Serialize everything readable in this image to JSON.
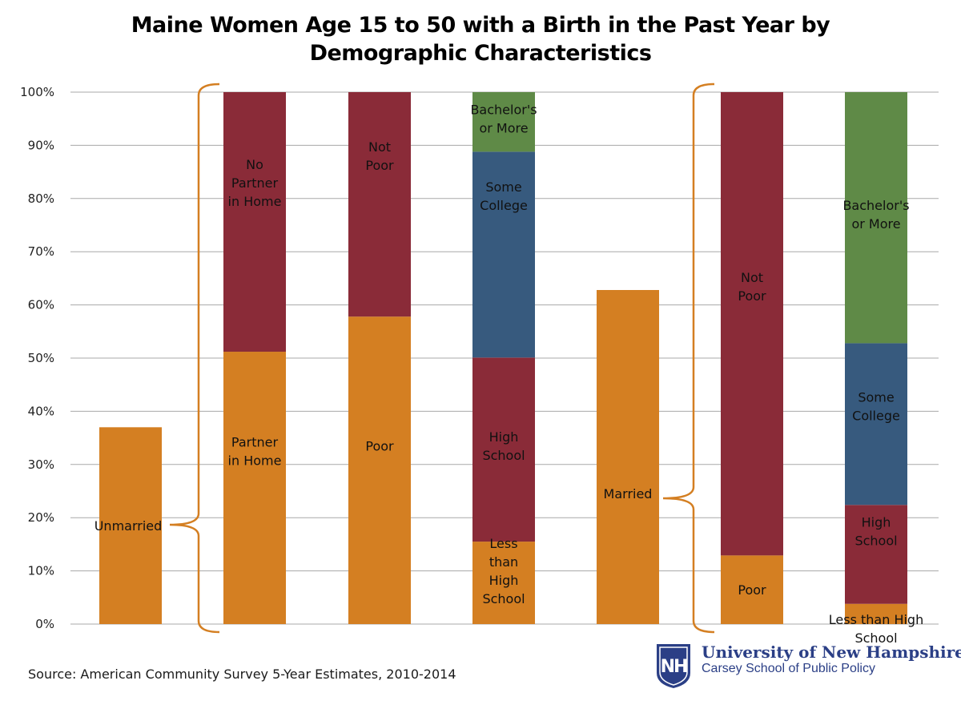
{
  "chart_data": {
    "type": "bar",
    "title_line1": "Maine Women Age 15 to 50 with a Birth in the Past Year by",
    "title_line2": "Demographic Characteristics",
    "ylim": [
      0,
      100
    ],
    "y_ticks": [
      "0%",
      "10%",
      "20%",
      "30%",
      "40%",
      "50%",
      "60%",
      "70%",
      "80%",
      "90%",
      "100%"
    ],
    "grid": true,
    "bars": [
      {
        "segments": [
          {
            "label": "Unmarried",
            "value": 37,
            "color": "#d47f22"
          }
        ]
      },
      {
        "segments": [
          {
            "label": "Partner in Home",
            "value": 51.2,
            "color": "#d47f22"
          },
          {
            "label": "No Partner in Home",
            "value": 48.8,
            "color": "#8a2b38"
          }
        ]
      },
      {
        "segments": [
          {
            "label": "Poor",
            "value": 57.8,
            "color": "#d47f22"
          },
          {
            "label": "Not Poor",
            "value": 42.2,
            "color": "#8a2b38"
          }
        ]
      },
      {
        "segments": [
          {
            "label": "Less than High School",
            "value": 15.5,
            "color": "#d47f22"
          },
          {
            "label": "High School",
            "value": 34.6,
            "color": "#8a2b38"
          },
          {
            "label": "Some College",
            "value": 38.7,
            "color": "#375a7e"
          },
          {
            "label": "Bachelor's or More",
            "value": 11.2,
            "color": "#5f8a47"
          }
        ]
      },
      {
        "segments": [
          {
            "label": "Married",
            "value": 62.8,
            "color": "#d47f22"
          }
        ]
      },
      {
        "segments": [
          {
            "label": "Poor",
            "value": 12.9,
            "color": "#d47f22"
          },
          {
            "label": "Not Poor",
            "value": 87.1,
            "color": "#8a2b38"
          }
        ]
      },
      {
        "segments": [
          {
            "label": "Less than High School",
            "value": 3.8,
            "color": "#d47f22"
          },
          {
            "label": "High School",
            "value": 18.6,
            "color": "#8a2b38"
          },
          {
            "label": "Some College",
            "value": 30.4,
            "color": "#375a7e"
          },
          {
            "label": "Bachelor's or More",
            "value": 47.2,
            "color": "#5f8a47"
          }
        ]
      }
    ],
    "brackets": [
      {
        "label": "Unmarried"
      },
      {
        "label": "Married"
      }
    ],
    "bracket_color": "#d47f22"
  },
  "source": "Source: American Community Survey 5-Year Estimates, 2010-2014",
  "logo": {
    "line1": "University of New Hampshire",
    "line2": "Carsey School of Public Policy",
    "mark": "NH",
    "color": "#2b3f86"
  }
}
